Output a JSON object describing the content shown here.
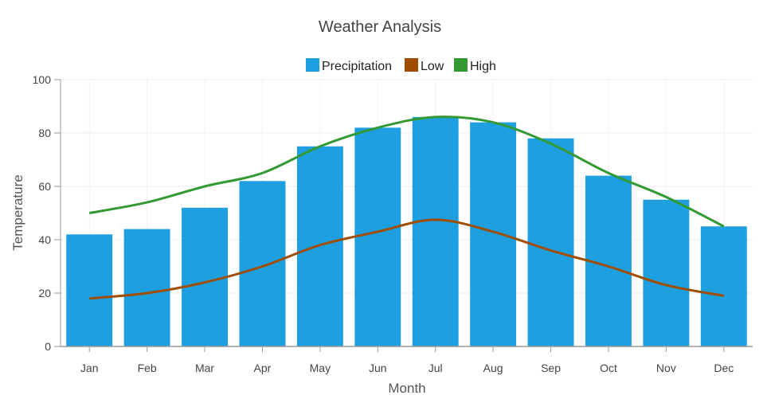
{
  "chart_data": {
    "type": "bar",
    "title": "Weather Analysis",
    "xlabel": "Month",
    "ylabel": "Temperature",
    "ylim": [
      0,
      100
    ],
    "yticks": [
      0,
      20,
      40,
      60,
      80,
      100
    ],
    "categories": [
      "Jan",
      "Feb",
      "Mar",
      "Apr",
      "May",
      "Jun",
      "Jul",
      "Aug",
      "Sep",
      "Oct",
      "Nov",
      "Dec"
    ],
    "grid": true,
    "legend_position": "top",
    "series": [
      {
        "name": "Precipitation",
        "type": "bar",
        "color": "#1e9fe0",
        "values": [
          42,
          44,
          52,
          62,
          75,
          82,
          86,
          84,
          78,
          64,
          55,
          45
        ]
      },
      {
        "name": "Low",
        "type": "line",
        "color": "#a14d00",
        "values": [
          18,
          20,
          24,
          30,
          38,
          43,
          47.5,
          43,
          36,
          30,
          23,
          19
        ]
      },
      {
        "name": "High",
        "type": "line",
        "color": "#339933",
        "values": [
          50,
          54,
          60,
          65,
          75,
          82,
          86,
          84,
          76,
          65,
          56,
          45
        ]
      }
    ]
  }
}
